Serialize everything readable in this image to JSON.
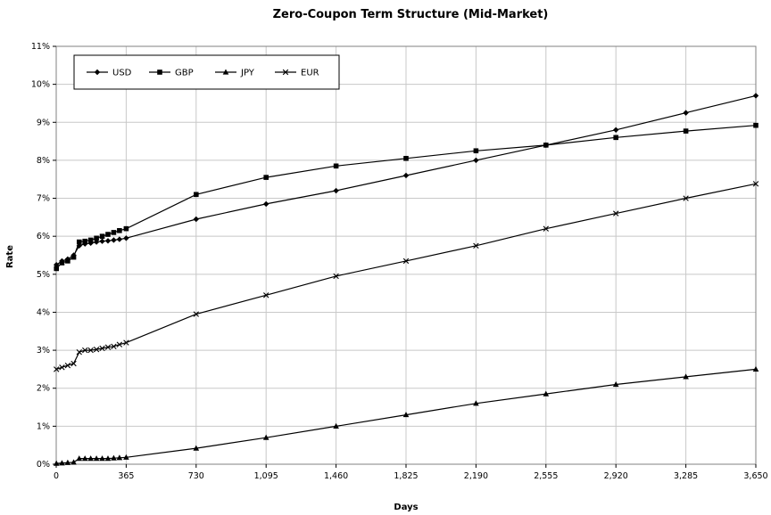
{
  "chart_data": {
    "type": "line",
    "title": "Zero-Coupon Term Structure (Mid-Market)",
    "xlabel": "Days",
    "ylabel": "Rate",
    "xlim": [
      0,
      3650
    ],
    "ylim": [
      0,
      11
    ],
    "x_ticks": [
      0,
      365,
      730,
      1095,
      1460,
      1825,
      2190,
      2555,
      2920,
      3285,
      3650
    ],
    "x_tick_labels": [
      "0",
      "365",
      "730",
      "1,095",
      "1,460",
      "1,825",
      "2,190",
      "2,555",
      "2,920",
      "3,285",
      "3,650"
    ],
    "y_ticks": [
      0,
      1,
      2,
      3,
      4,
      5,
      6,
      7,
      8,
      9,
      10,
      11
    ],
    "y_tick_labels": [
      "0%",
      "1%",
      "2%",
      "3%",
      "4%",
      "5%",
      "6%",
      "7%",
      "8%",
      "9%",
      "10%",
      "11%"
    ],
    "grid": true,
    "legend_position": "top-left",
    "series": [
      {
        "name": "USD",
        "marker": "diamond",
        "color": "#000000",
        "x": [
          1,
          30,
          60,
          91,
          120,
          150,
          180,
          210,
          240,
          270,
          300,
          330,
          365,
          730,
          1095,
          1460,
          1825,
          2190,
          2555,
          2920,
          3285,
          3650
        ],
        "y": [
          5.25,
          5.35,
          5.4,
          5.5,
          5.75,
          5.8,
          5.82,
          5.85,
          5.87,
          5.88,
          5.9,
          5.92,
          5.95,
          6.45,
          6.85,
          7.2,
          7.6,
          8.0,
          8.4,
          8.8,
          9.25,
          9.7
        ]
      },
      {
        "name": "GBP",
        "marker": "square",
        "color": "#000000",
        "x": [
          1,
          30,
          60,
          91,
          120,
          150,
          180,
          210,
          240,
          270,
          300,
          330,
          365,
          730,
          1095,
          1460,
          1825,
          2190,
          2555,
          2920,
          3285,
          3650
        ],
        "y": [
          5.15,
          5.3,
          5.35,
          5.45,
          5.85,
          5.87,
          5.9,
          5.95,
          6.0,
          6.05,
          6.1,
          6.15,
          6.2,
          7.1,
          7.55,
          7.85,
          8.05,
          8.25,
          8.4,
          8.6,
          8.77,
          8.92
        ]
      },
      {
        "name": "JPY",
        "marker": "triangle",
        "color": "#000000",
        "x": [
          1,
          30,
          60,
          91,
          120,
          150,
          180,
          210,
          240,
          270,
          300,
          330,
          365,
          730,
          1095,
          1460,
          1825,
          2190,
          2555,
          2920,
          3285,
          3650
        ],
        "y": [
          0.02,
          0.03,
          0.04,
          0.05,
          0.15,
          0.15,
          0.15,
          0.15,
          0.15,
          0.15,
          0.16,
          0.17,
          0.18,
          0.42,
          0.7,
          1.0,
          1.3,
          1.6,
          1.85,
          2.1,
          2.3,
          2.5
        ]
      },
      {
        "name": "EUR",
        "marker": "x",
        "color": "#000000",
        "x": [
          1,
          30,
          60,
          91,
          120,
          150,
          180,
          210,
          240,
          270,
          300,
          330,
          365,
          730,
          1095,
          1460,
          1825,
          2190,
          2555,
          2920,
          3285,
          3650
        ],
        "y": [
          2.5,
          2.55,
          2.6,
          2.65,
          2.95,
          3.0,
          3.0,
          3.02,
          3.05,
          3.08,
          3.1,
          3.15,
          3.2,
          3.95,
          4.45,
          4.95,
          5.35,
          5.75,
          6.2,
          6.6,
          7.0,
          7.38
        ]
      }
    ]
  }
}
